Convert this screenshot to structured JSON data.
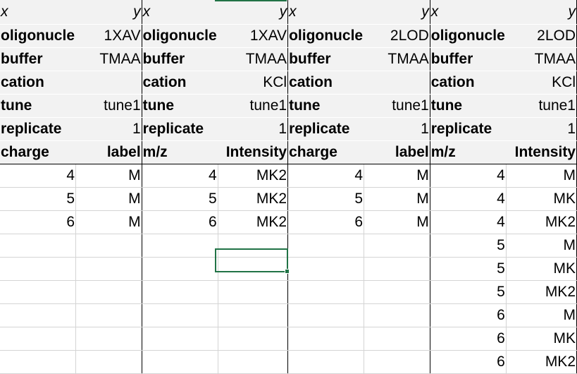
{
  "sheet": {
    "blocks": [
      {
        "x_label": "x",
        "y_label": "y",
        "meta": [
          {
            "key": "oligonucle",
            "value": "1XAV"
          },
          {
            "key": "buffer",
            "value": "TMAA"
          },
          {
            "key": "cation",
            "value": ""
          },
          {
            "key": "tune",
            "value": "tune1"
          },
          {
            "key": "replicate",
            "value": "1"
          }
        ],
        "col_x": "charge",
        "col_y": "label",
        "rows": [
          [
            "4",
            "M"
          ],
          [
            "5",
            "M"
          ],
          [
            "6",
            "M"
          ]
        ]
      },
      {
        "x_label": "x",
        "y_label": "y",
        "meta": [
          {
            "key": "oligonucle",
            "value": "1XAV"
          },
          {
            "key": "buffer",
            "value": "TMAA"
          },
          {
            "key": "cation",
            "value": "KCl"
          },
          {
            "key": "tune",
            "value": "tune1"
          },
          {
            "key": "replicate",
            "value": "1"
          }
        ],
        "col_x": "m/z",
        "col_y": "Intensity",
        "rows": [
          [
            "4",
            "MK2"
          ],
          [
            "5",
            "MK2"
          ],
          [
            "6",
            "MK2"
          ]
        ]
      },
      {
        "x_label": "x",
        "y_label": "y",
        "meta": [
          {
            "key": "oligonucle",
            "value": "2LOD"
          },
          {
            "key": "buffer",
            "value": "TMAA"
          },
          {
            "key": "cation",
            "value": ""
          },
          {
            "key": "tune",
            "value": "tune1"
          },
          {
            "key": "replicate",
            "value": "1"
          }
        ],
        "col_x": "charge",
        "col_y": "label",
        "rows": [
          [
            "4",
            "M"
          ],
          [
            "5",
            "M"
          ],
          [
            "6",
            "M"
          ]
        ]
      },
      {
        "x_label": "x",
        "y_label": "y",
        "meta": [
          {
            "key": "oligonucle",
            "value": "2LOD"
          },
          {
            "key": "buffer",
            "value": "TMAA"
          },
          {
            "key": "cation",
            "value": "KCl"
          },
          {
            "key": "tune",
            "value": "tune1"
          },
          {
            "key": "replicate",
            "value": "1"
          }
        ],
        "col_x": "m/z",
        "col_y": "Intensity",
        "rows": [
          [
            "4",
            "M"
          ],
          [
            "4",
            "MK"
          ],
          [
            "4",
            "MK2"
          ],
          [
            "5",
            "M"
          ],
          [
            "5",
            "MK"
          ],
          [
            "5",
            "MK2"
          ],
          [
            "6",
            "M"
          ],
          [
            "6",
            "MK"
          ],
          [
            "6",
            "MK2"
          ]
        ]
      }
    ],
    "data_row_count": 9,
    "selection_color": "#217346"
  }
}
